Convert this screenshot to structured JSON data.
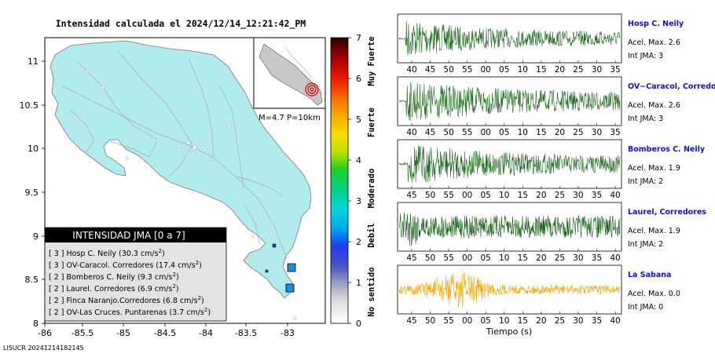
{
  "map": {
    "title": "Intensidad calculada el 2024/12/14_12:21:42_PM",
    "footer": "LISUCR 20241214182145",
    "inset_label": "M=4.7 P=10km",
    "yticks": [
      "11",
      "10.5",
      "10",
      "9.5",
      "9",
      "8.5",
      "8"
    ],
    "xticks": [
      "-86",
      "-85.5",
      "-85",
      "-84.5",
      "-84",
      "-83.5",
      "-83"
    ],
    "legend_title": "INTENSIDAD JMA [0 a 7]",
    "legend_items": [
      {
        "level": "[ 3 ]",
        "text": "Hosp C. Neily (30.3 cm/s",
        "unit_exp": "2",
        "close": ")"
      },
      {
        "level": "[ 3 ]",
        "text": "OV-Caracol. Corredores (17.4 cm/s",
        "unit_exp": "2",
        "close": ")"
      },
      {
        "level": "[ 2 ]",
        "text": "Bomberos C. Neily (9.3 cm/s",
        "unit_exp": "2",
        "close": ")"
      },
      {
        "level": "[ 2 ]",
        "text": "Laurel. Corredores (6.9 cm/s",
        "unit_exp": "2",
        "close": ")"
      },
      {
        "level": "[ 2 ]",
        "text": "Finca Naranjo.Corredores (6.8 cm/s",
        "unit_exp": "2",
        "close": ")"
      },
      {
        "level": "[ 2 ]",
        "text": "OV-Las Cruces. Puntarenas (3.7 cm/s",
        "unit_exp": "2",
        "close": ")"
      }
    ],
    "colors": {
      "land": "#b2ebee",
      "ocean": "#ffffff",
      "legend_bg": "#e3e3e3",
      "legend_head": "#000000"
    }
  },
  "colorbar": {
    "ticks": [
      "0",
      "1",
      "2",
      "3",
      "4",
      "5",
      "6",
      "7"
    ],
    "labels": [
      "No sentido",
      "Debil",
      "Moderado",
      "Fuerte",
      "Muy Fuerte"
    ]
  },
  "chart_data": [
    {
      "type": "line",
      "station": "Hosp C. Neily",
      "accel_label": "Acel. Max. 2.6",
      "int_label": "Int JMA: 3",
      "color": "#1e6b1e",
      "xticks": [
        "40",
        "45",
        "50",
        "55",
        "00",
        "05",
        "10",
        "15",
        "20",
        "25",
        "30",
        "35"
      ],
      "amplitude": 0.8,
      "onset_frac": 0.03,
      "decay": 0.25
    },
    {
      "type": "line",
      "station": "OV−Caracol, Corredore",
      "accel_label": "Acel. Max. 2.6",
      "int_label": "Int JMA: 3",
      "color": "#1e6b1e",
      "xticks": [
        "40",
        "45",
        "50",
        "55",
        "00",
        "05",
        "10",
        "15",
        "20",
        "25",
        "30",
        "35"
      ],
      "amplitude": 0.85,
      "onset_frac": 0.03,
      "decay": 0.45
    },
    {
      "type": "line",
      "station": "Bomberos C. Neily",
      "accel_label": "Acel. Max. 1.9",
      "int_label": "Int JMA: 2",
      "color": "#1e6b1e",
      "xticks": [
        "45",
        "50",
        "55",
        "00",
        "05",
        "10",
        "15",
        "20",
        "25",
        "30",
        "35",
        "40"
      ],
      "amplitude": 0.9,
      "onset_frac": 0.04,
      "decay": 0.3
    },
    {
      "type": "line",
      "station": "Laurel, Corredores",
      "accel_label": "Acel. Max. 1.9",
      "int_label": "Int JMA: 2",
      "color": "#0f5c0f",
      "xticks": [
        "45",
        "50",
        "55",
        "00",
        "05",
        "10",
        "15",
        "20",
        "25",
        "30",
        "35",
        "40"
      ],
      "amplitude": 0.85,
      "onset_frac": 0.04,
      "decay": 0.0
    },
    {
      "type": "line",
      "station": "La Sabana",
      "accel_label": "Acel. Max. 0.0",
      "int_label": "Int JMA: 0",
      "color": "#f5a300",
      "xticks": [
        "45",
        "50",
        "55",
        "00",
        "05",
        "10",
        "15",
        "20",
        "25",
        "30",
        "35",
        "40"
      ],
      "amplitude": 0.75,
      "onset_frac": 0.0,
      "decay": 0.0
    },
    {
      "xlabel": "Tiempo (s)"
    }
  ]
}
